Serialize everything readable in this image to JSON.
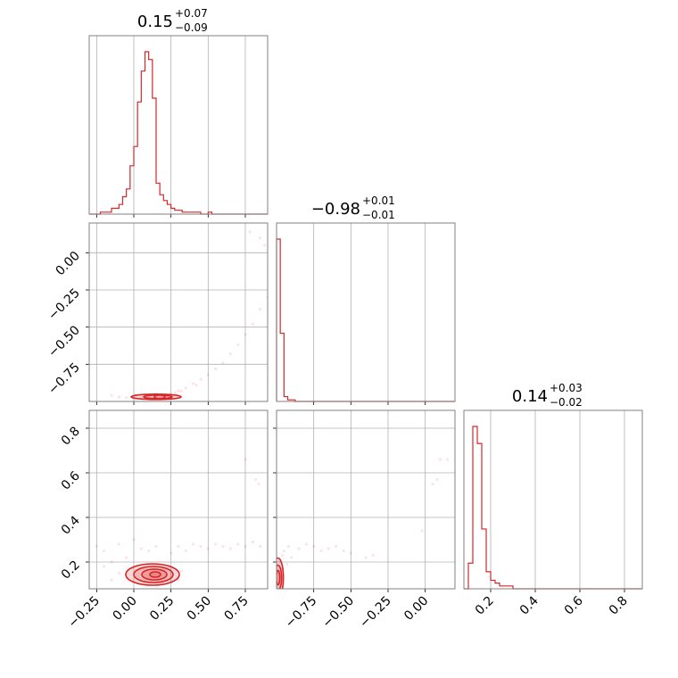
{
  "chart_data": {
    "type": "corner",
    "color": "#d62728",
    "parameters": [
      {
        "median": "0.15",
        "upper": "+0.07",
        "lower": "−0.09"
      },
      {
        "median": "−0.98",
        "upper": "+0.01",
        "lower": "−0.01"
      },
      {
        "median": "0.14",
        "upper": "+0.03",
        "lower": "−0.02"
      }
    ],
    "ranges": [
      [
        -0.3,
        0.9
      ],
      [
        -1.0,
        0.2
      ],
      [
        0.08,
        0.88
      ]
    ],
    "ticks": [
      {
        "values": [
          -0.25,
          0.0,
          0.25,
          0.5,
          0.75
        ],
        "labels": [
          "−0.25",
          "0.00",
          "0.25",
          "0.50",
          "0.75"
        ]
      },
      {
        "values": [
          -0.75,
          -0.5,
          -0.25,
          0.0
        ],
        "labels": [
          "−0.75",
          "−0.50",
          "−0.25",
          "0.00"
        ]
      },
      {
        "values": [
          0.2,
          0.4,
          0.6,
          0.8
        ],
        "labels": [
          "0.2",
          "0.4",
          "0.6",
          "0.8"
        ]
      }
    ],
    "hist1d": [
      {
        "edges_start": -0.3,
        "bin_width": 0.025,
        "counts": [
          0,
          0,
          0,
          1,
          1,
          1,
          3,
          3,
          5,
          9,
          13,
          25,
          35,
          58,
          74,
          84,
          80,
          60,
          16,
          10,
          7,
          5,
          3,
          2,
          2,
          1,
          1,
          1,
          1,
          1,
          0,
          0,
          1,
          0,
          0,
          0,
          0,
          0,
          0,
          0,
          0,
          0,
          0,
          0,
          0,
          0,
          0,
          0
        ]
      },
      {
        "edges_start": -1.0,
        "bin_width": 0.025,
        "counts": [
          100,
          42,
          3,
          1,
          1,
          0,
          0,
          0,
          0,
          0,
          0,
          0,
          0,
          0,
          0,
          0,
          0,
          0,
          0,
          0,
          0,
          0,
          0,
          0,
          0,
          0,
          0,
          0,
          0,
          0,
          0,
          0,
          0,
          0,
          0,
          0,
          0,
          0,
          0,
          0,
          0,
          0,
          0,
          0,
          0,
          0,
          0,
          0
        ]
      },
      {
        "edges_start": 0.08,
        "bin_width": 0.02,
        "counts": [
          0,
          9,
          57,
          51,
          21,
          6,
          3,
          2,
          1,
          1,
          1,
          0,
          0,
          0,
          0,
          0,
          0,
          0,
          0,
          0,
          0,
          0,
          0,
          0,
          0,
          0,
          0,
          0,
          0,
          0,
          0,
          0,
          0,
          0,
          0,
          0,
          0,
          0,
          0,
          0
        ]
      }
    ],
    "scatter": {
      "p1_p0": [
        [
          -0.15,
          -0.96
        ],
        [
          -0.1,
          -0.97
        ],
        [
          -0.05,
          -0.975
        ],
        [
          0.0,
          -0.98
        ],
        [
          0.05,
          -0.98
        ],
        [
          0.1,
          -0.975
        ],
        [
          0.2,
          -0.97
        ],
        [
          0.25,
          -0.95
        ],
        [
          0.3,
          -0.93
        ],
        [
          0.35,
          -0.91
        ],
        [
          0.4,
          -0.88
        ],
        [
          0.45,
          -0.85
        ],
        [
          0.5,
          -0.82
        ],
        [
          0.55,
          -0.78
        ],
        [
          0.6,
          -0.74
        ],
        [
          0.65,
          -0.68
        ],
        [
          0.7,
          -0.62
        ],
        [
          0.75,
          -0.55
        ],
        [
          0.8,
          -0.48
        ],
        [
          0.85,
          -0.38
        ],
        [
          0.9,
          -0.3
        ],
        [
          0.78,
          0.14
        ],
        [
          0.85,
          0.1
        ],
        [
          0.88,
          0.05
        ],
        [
          0.22,
          -0.96
        ],
        [
          0.28,
          -0.94
        ],
        [
          0.32,
          -0.93
        ],
        [
          0.42,
          -0.89
        ]
      ],
      "p2_p0": [
        [
          -0.25,
          0.27
        ],
        [
          -0.2,
          0.25
        ],
        [
          -0.15,
          0.2
        ],
        [
          -0.1,
          0.28
        ],
        [
          -0.05,
          0.22
        ],
        [
          0.0,
          0.3
        ],
        [
          0.05,
          0.26
        ],
        [
          0.1,
          0.25
        ],
        [
          0.15,
          0.27
        ],
        [
          0.25,
          0.24
        ],
        [
          0.3,
          0.27
        ],
        [
          0.35,
          0.25
        ],
        [
          0.4,
          0.28
        ],
        [
          0.45,
          0.27
        ],
        [
          0.5,
          0.26
        ],
        [
          0.55,
          0.28
        ],
        [
          0.6,
          0.27
        ],
        [
          0.65,
          0.26
        ],
        [
          0.7,
          0.28
        ],
        [
          0.75,
          0.27
        ],
        [
          0.8,
          0.29
        ],
        [
          0.85,
          0.27
        ],
        [
          0.75,
          0.66
        ],
        [
          0.82,
          0.57
        ],
        [
          0.84,
          0.55
        ],
        [
          -0.1,
          0.15
        ],
        [
          -0.15,
          0.12
        ],
        [
          0.3,
          0.12
        ],
        [
          0.32,
          0.16
        ],
        [
          -0.2,
          0.18
        ]
      ],
      "p2_p1": [
        [
          -0.98,
          0.2
        ],
        [
          -0.95,
          0.25
        ],
        [
          -0.92,
          0.27
        ],
        [
          -0.9,
          0.22
        ],
        [
          -0.85,
          0.26
        ],
        [
          -0.8,
          0.28
        ],
        [
          -0.75,
          0.27
        ],
        [
          -0.7,
          0.25
        ],
        [
          -0.65,
          0.26
        ],
        [
          -0.6,
          0.27
        ],
        [
          -0.55,
          0.25
        ],
        [
          -0.5,
          0.24
        ],
        [
          -0.4,
          0.22
        ],
        [
          -0.35,
          0.23
        ],
        [
          -0.02,
          0.34
        ],
        [
          0.05,
          0.55
        ],
        [
          0.08,
          0.57
        ],
        [
          0.15,
          0.66
        ],
        [
          0.1,
          0.66
        ],
        [
          -0.97,
          0.17
        ],
        [
          -0.93,
          0.19
        ],
        [
          -0.96,
          0.23
        ]
      ]
    },
    "contours": {
      "p2_p0_centre": [
        0.15,
        0.14
      ],
      "p1_p0_centre": [
        0.15,
        -0.975
      ]
    }
  }
}
